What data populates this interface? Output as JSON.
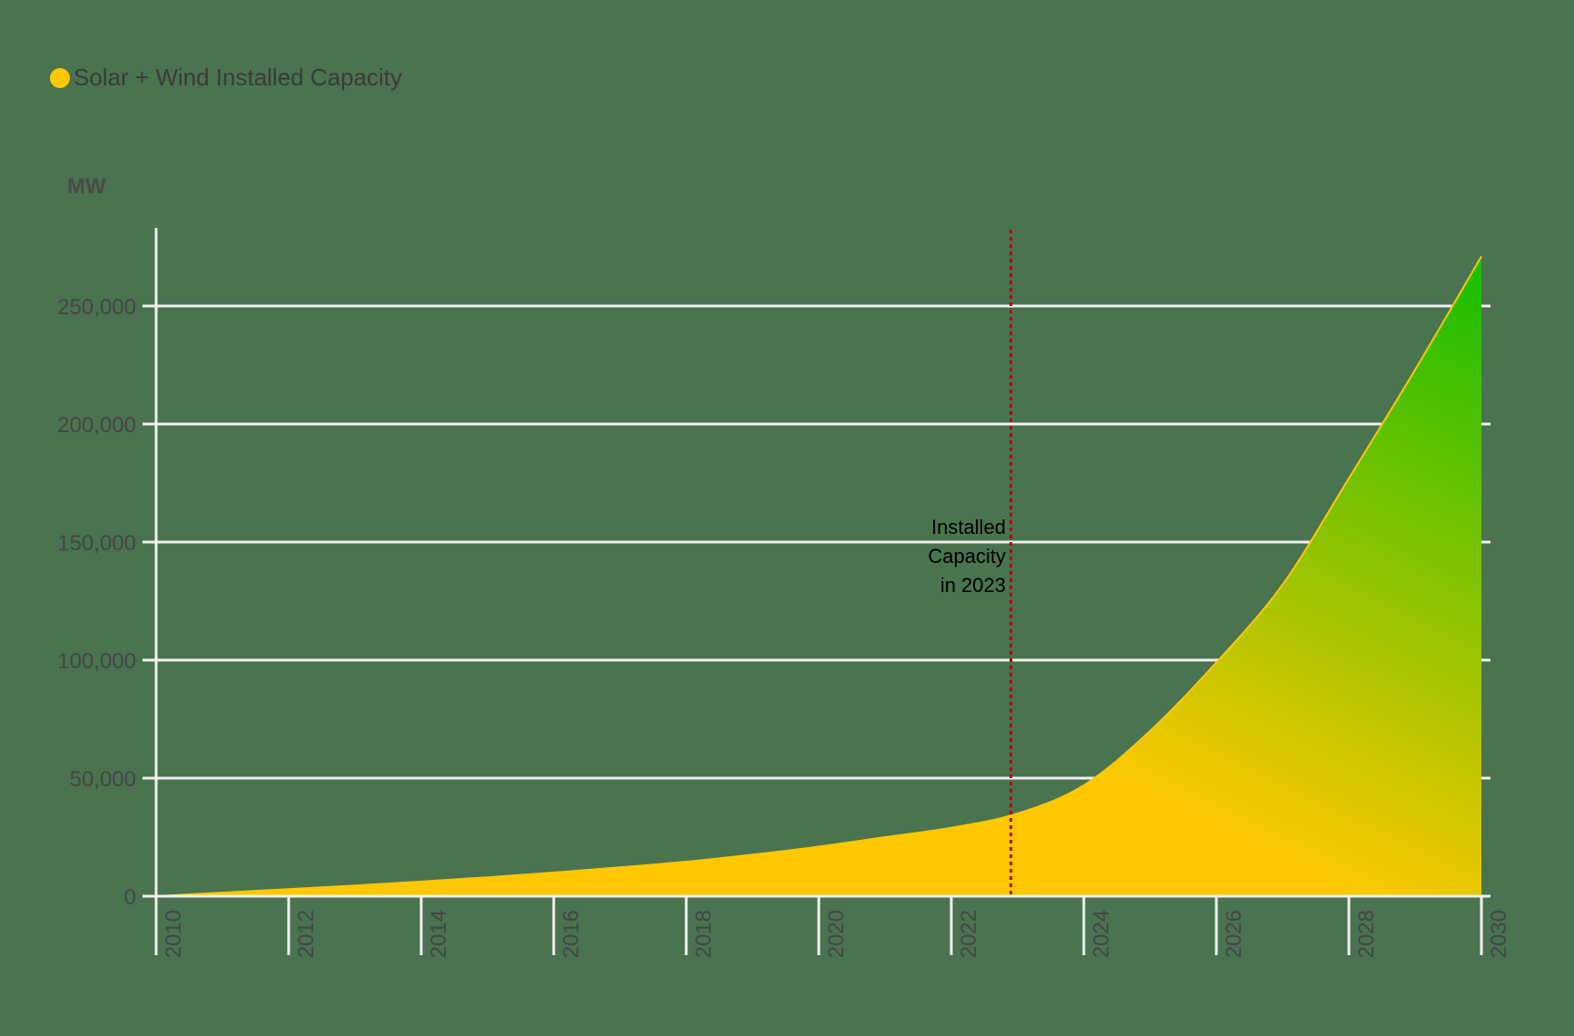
{
  "legend": {
    "label": "Solar + Wind Installed Capacity",
    "color": "#ffc800"
  },
  "y_unit": "MW",
  "annotation": {
    "lines": [
      "Installed",
      "Capacity",
      "in 2023"
    ],
    "year": 2022.9,
    "color": "#c00000"
  },
  "colors": {
    "background": "#4a7350",
    "grid": "#f0f0f0",
    "gradient_start": "#ffc800",
    "gradient_end": "#14be00"
  },
  "chart_data": {
    "type": "area",
    "title": "",
    "legend": [
      "Solar + Wind Installed Capacity"
    ],
    "xlabel": "",
    "ylabel": "MW",
    "x": [
      2010,
      2011,
      2012,
      2013,
      2014,
      2015,
      2016,
      2017,
      2018,
      2019,
      2020,
      2021,
      2022,
      2023,
      2024,
      2025,
      2026,
      2027,
      2028,
      2029,
      2030
    ],
    "series": [
      {
        "name": "Solar + Wind Installed Capacity",
        "values": [
          0,
          1500,
          3000,
          4500,
          6200,
          8000,
          10000,
          12200,
          14600,
          17600,
          21000,
          25000,
          29000,
          35000,
          47000,
          70000,
          99000,
          132000,
          177000,
          223000,
          271000
        ]
      }
    ],
    "x_ticks": [
      "2010",
      "2012",
      "2014",
      "2016",
      "2018",
      "2020",
      "2022",
      "2024",
      "2026",
      "2028",
      "2030"
    ],
    "y_ticks": [
      "0",
      "50,000",
      "100,000",
      "150,000",
      "200,000",
      "250,000"
    ],
    "ylim": [
      0,
      285000
    ],
    "xlim": [
      2010,
      2030
    ],
    "grid": true,
    "legend_position": "top-left",
    "annotations": [
      {
        "x": 2022.9,
        "text": "Installed Capacity in 2023",
        "style": "dotted vertical line"
      }
    ]
  }
}
